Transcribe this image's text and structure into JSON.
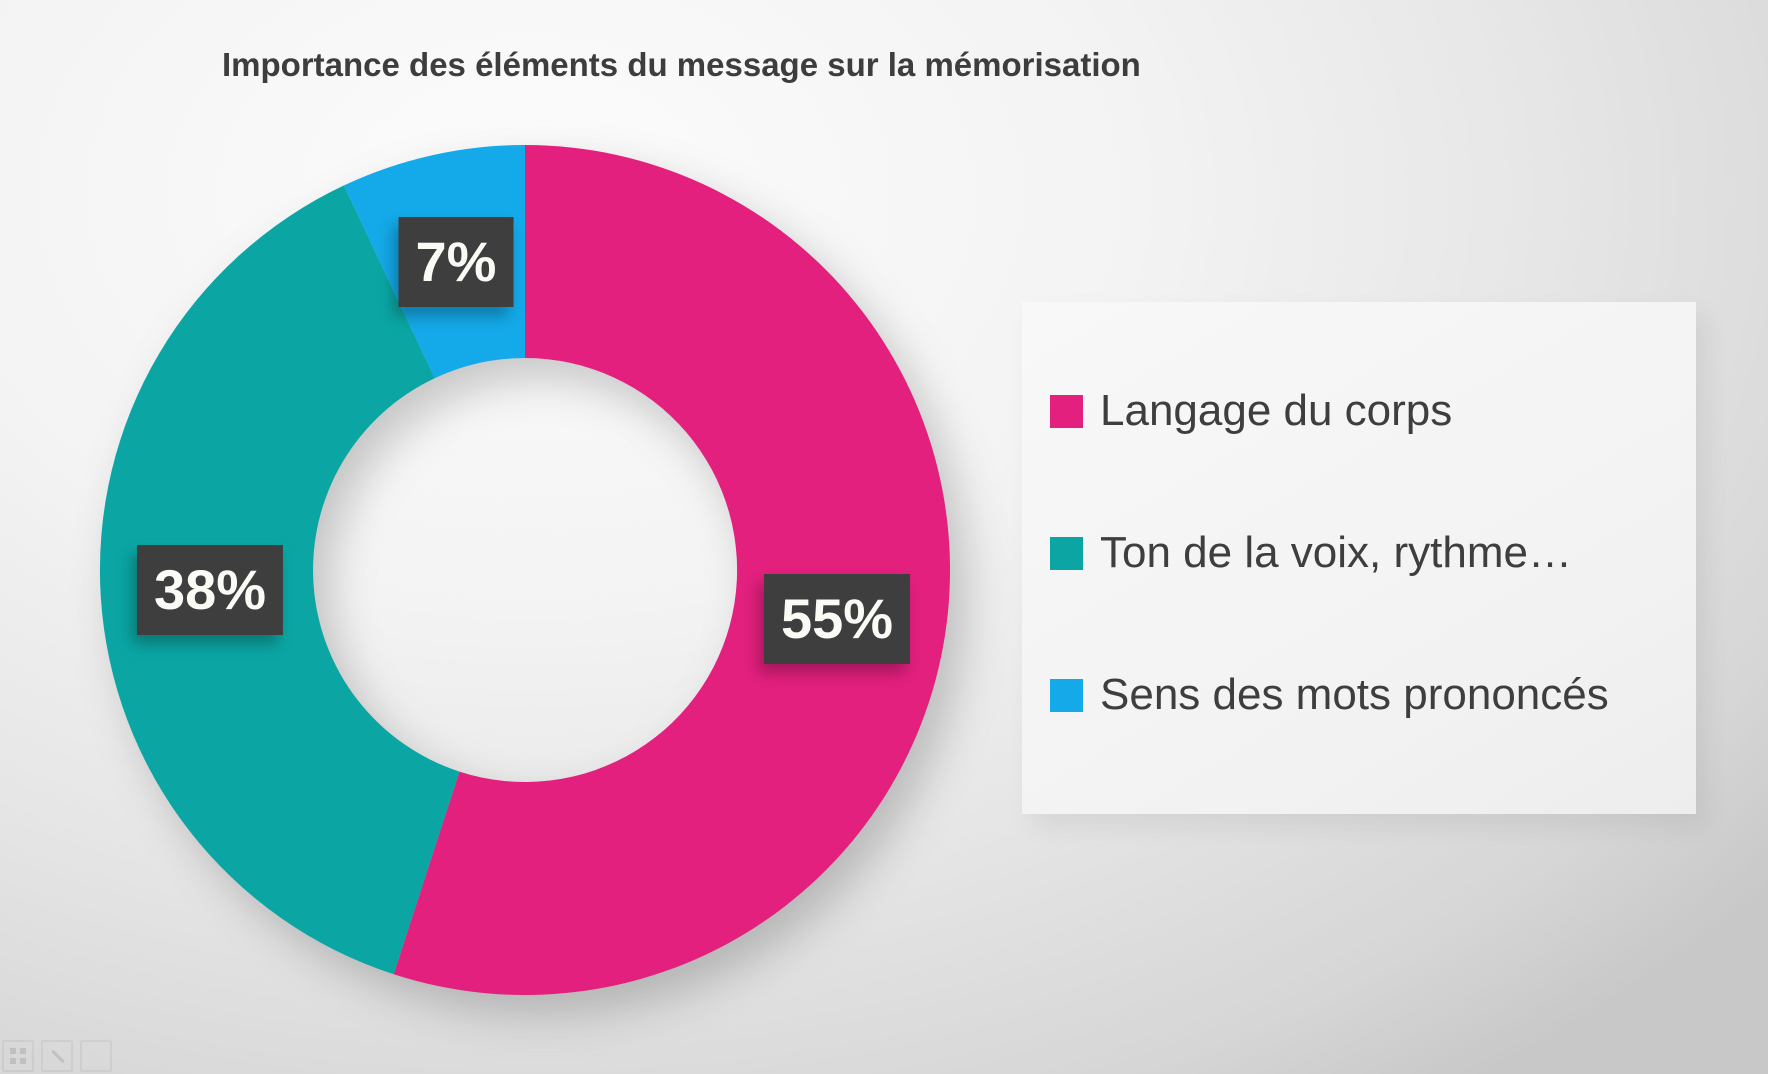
{
  "chart_data": {
    "type": "pie",
    "subtype": "donut",
    "title": "Importance des éléments du message sur la mémorisation",
    "categories": [
      "Langage du corps",
      "Ton de la voix, rythme…",
      "Sens des mots prononcés"
    ],
    "values": [
      55,
      38,
      7
    ],
    "data_labels": [
      "55%",
      "38%",
      "7%"
    ],
    "colors": [
      "#e3207e",
      "#0ba6a4",
      "#14a9e8"
    ],
    "start_angle_deg": 0,
    "direction": "clockwise",
    "hole_ratio": 0.5,
    "legend_position": "right",
    "data_label_style": {
      "background": "#3e3e3e",
      "text_color": "#ffffff",
      "placement": "inside-ring"
    },
    "title_color": "#3d3d3d",
    "legend_text_color": "#3e3e3e"
  },
  "toolbar": {
    "buttons": [
      {
        "icon": "grid-icon"
      },
      {
        "icon": "pen-icon"
      },
      {
        "icon": "blank-square-icon"
      }
    ]
  }
}
